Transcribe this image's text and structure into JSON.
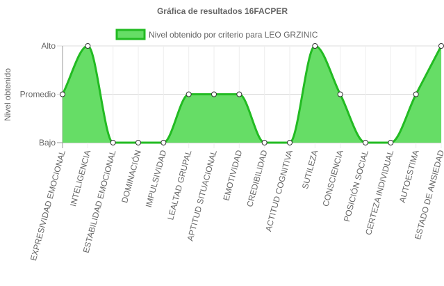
{
  "chart_data": {
    "type": "area",
    "title": "Gráfica de resultados 16FACPER",
    "ylabel": "Nivel obtenido",
    "xlabel": "",
    "y_levels": [
      "Bajo",
      "Promedio",
      "Alto"
    ],
    "ylim": [
      0,
      2
    ],
    "grid": true,
    "legend_position": "top",
    "categories": [
      "EXPRESIVIDAD EMOCIONAL",
      "INTELIGENCIA",
      "ESTABILIDAD EMOCIONAL",
      "DOMINACIÓN",
      "IMPULSIVIDAD",
      "LEALTAD GRUPAL",
      "APTITUD SITUACIONAL",
      "EMOTIVIDAD",
      "CREDIBILIDAD",
      "ACTITUD COGNITIVA",
      "SUTILEZA",
      "CONSCIENCIA",
      "POSICIÓN SOCIAL",
      "CERTEZA INDIVIDUAL",
      "AUTOESTIMA",
      "ESTADO DE ANSIEDAD"
    ],
    "series": [
      {
        "name": "Nivel obtenido por criterio para LEO GRZINIC",
        "values": [
          1,
          2,
          0,
          0,
          0,
          1,
          1,
          1,
          0,
          0,
          2,
          1,
          0,
          0,
          1,
          2
        ],
        "fill_color": "#66dd66",
        "line_color": "#22bb22"
      }
    ]
  }
}
